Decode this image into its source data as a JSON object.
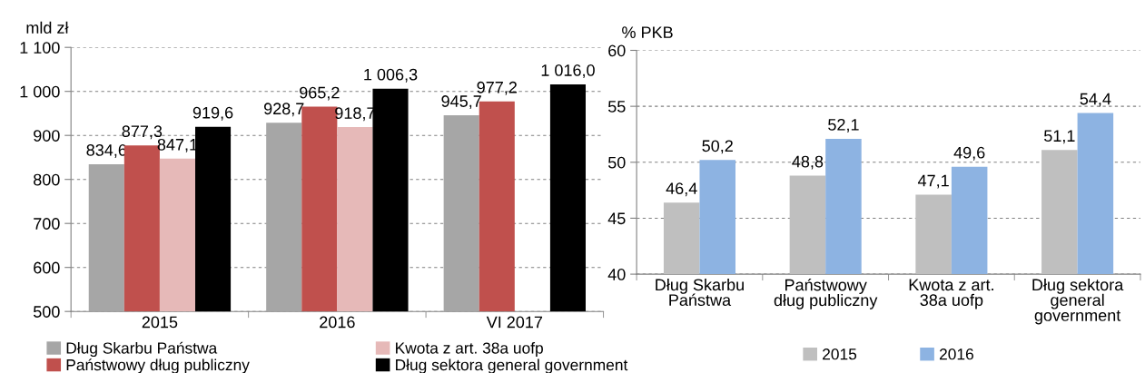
{
  "chart_data": [
    {
      "type": "bar",
      "ylabel": "mld zł",
      "categories": [
        "2015",
        "2016",
        "VI 2017"
      ],
      "series": [
        {
          "name": "Dług Skarbu Państwa",
          "color": "#a6a6a6",
          "values": [
            834.6,
            928.7,
            945.7
          ],
          "value_labels": [
            "834,6",
            "928,7",
            "945,7"
          ]
        },
        {
          "name": "Państwowy dług publiczny",
          "color": "#c0504d",
          "values": [
            877.3,
            965.2,
            977.2
          ],
          "value_labels": [
            "877,3",
            "965,2",
            "977,2"
          ]
        },
        {
          "name": "Kwota z art. 38a uofp",
          "color": "#e6b9b8",
          "values": [
            847.1,
            918.7,
            null
          ],
          "value_labels": [
            "847,1",
            "918,7",
            null
          ]
        },
        {
          "name": "Dług sektora general government",
          "color": "#000000",
          "values": [
            919.6,
            1006.3,
            1016.0
          ],
          "value_labels": [
            "919,6",
            "1 006,3",
            "1 016,0"
          ]
        }
      ],
      "ylim": [
        500,
        1100
      ],
      "yticks": [
        500,
        600,
        700,
        800,
        900,
        {
          "value": 1000,
          "label": "1 000"
        },
        {
          "value": 1100,
          "label": "1 100"
        }
      ],
      "grid": "y",
      "legend": "bottom"
    },
    {
      "type": "bar",
      "ylabel": "% PKB",
      "categories": [
        "Dług Skarbu\nPaństwa",
        "Państwowy\ndług publiczny",
        "Kwota z art.\n38a uofp",
        "Dług sektora\ngeneral\ngovernment"
      ],
      "series": [
        {
          "name": "2015",
          "color": "#bfbfbf",
          "values": [
            46.4,
            48.8,
            47.1,
            51.1
          ],
          "value_labels": [
            "46,4",
            "48,8",
            "47,1",
            "51,1"
          ]
        },
        {
          "name": "2016",
          "color": "#8db3e2",
          "values": [
            50.2,
            52.1,
            49.6,
            54.4
          ],
          "value_labels": [
            "50,2",
            "52,1",
            "49,6",
            "54,4"
          ]
        }
      ],
      "ylim": [
        40,
        60
      ],
      "yticks": [
        40,
        45,
        50,
        55,
        60
      ],
      "grid": "y",
      "legend": "bottom"
    }
  ]
}
